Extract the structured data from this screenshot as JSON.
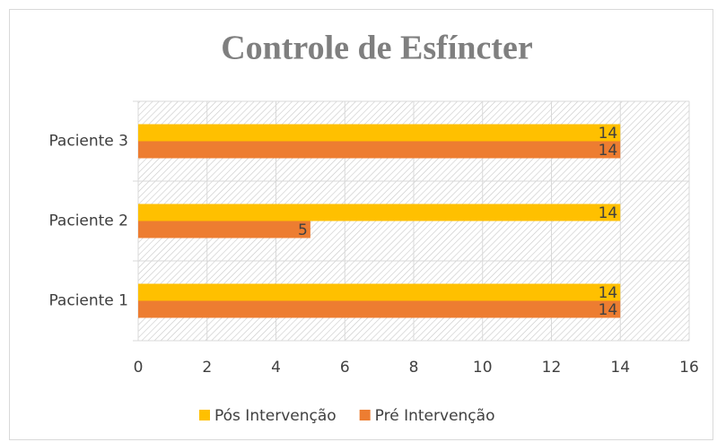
{
  "chart_data": {
    "type": "hbar",
    "title": "Controle de Esfíncter",
    "categories": [
      "Paciente 1",
      "Paciente 2",
      "Paciente 3"
    ],
    "series": [
      {
        "name": "Pós Intervenção",
        "color": "#ffc000",
        "values": [
          14,
          14,
          14
        ]
      },
      {
        "name": "Pré Intervenção",
        "color": "#ed7d31",
        "values": [
          14,
          5,
          14
        ]
      }
    ],
    "xlim": [
      0,
      16
    ],
    "xticks": [
      0,
      2,
      4,
      6,
      8,
      10,
      12,
      14,
      16
    ],
    "grid": true,
    "legend": "bottom"
  }
}
